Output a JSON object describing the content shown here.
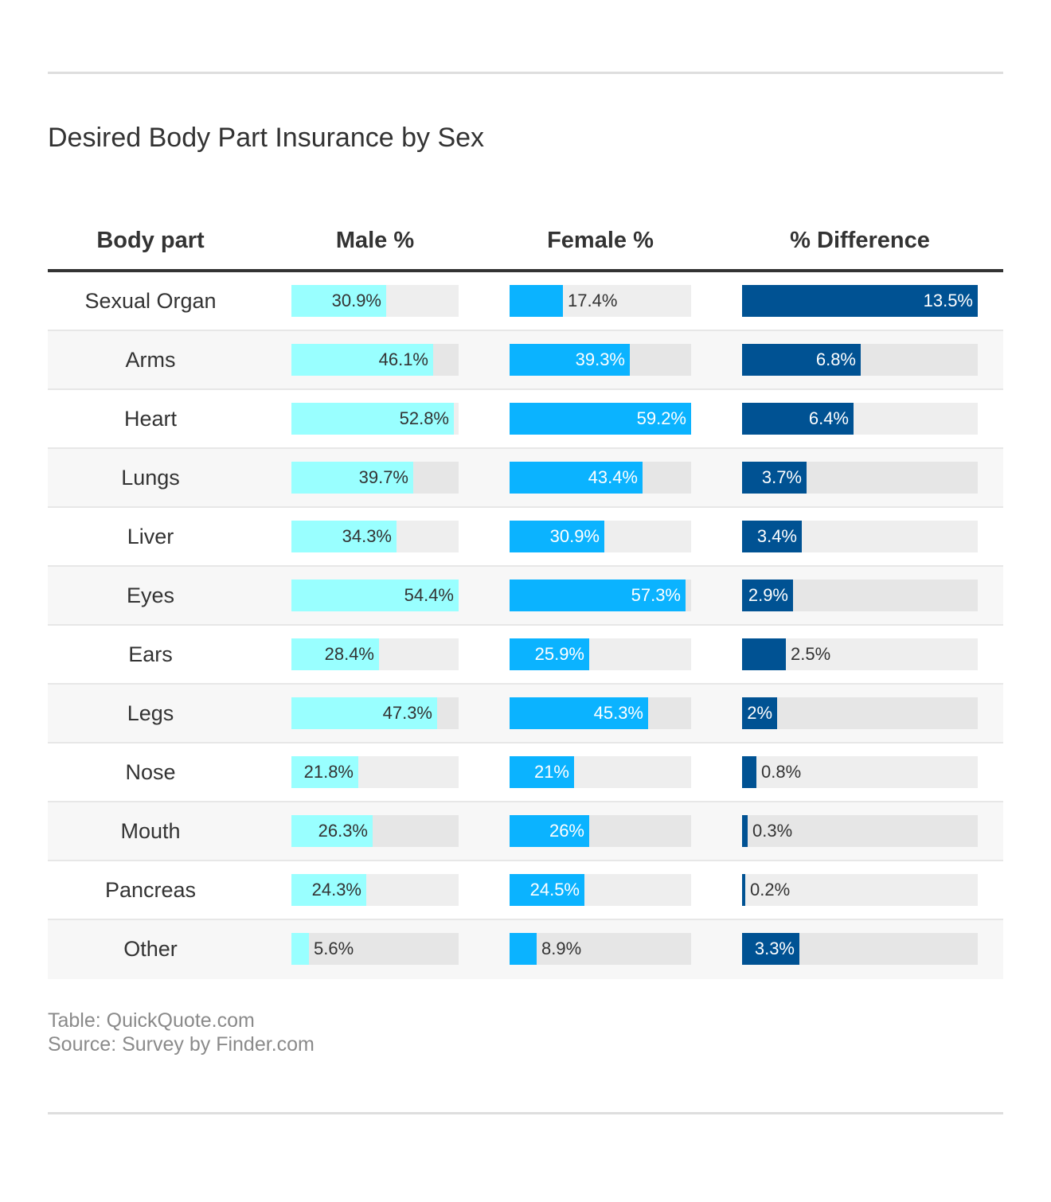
{
  "colors": {
    "male": "#99ffff",
    "female": "#0bb3ff",
    "difference": "#005293"
  },
  "chart_data": {
    "type": "table",
    "title": "Desired Body Part Insurance by Sex",
    "columns": [
      "Body part",
      "Male %",
      "Female %",
      "% Difference"
    ],
    "column_max": {
      "male": 54.4,
      "female": 59.2,
      "difference": 13.5
    },
    "rows": [
      {
        "part": "Sexual Organ",
        "male": 30.9,
        "female": 17.4,
        "difference": 13.5,
        "male_label": "30.9%",
        "female_label": "17.4%",
        "difference_label": "13.5%"
      },
      {
        "part": "Arms",
        "male": 46.1,
        "female": 39.3,
        "difference": 6.8,
        "male_label": "46.1%",
        "female_label": "39.3%",
        "difference_label": "6.8%"
      },
      {
        "part": "Heart",
        "male": 52.8,
        "female": 59.2,
        "difference": 6.4,
        "male_label": "52.8%",
        "female_label": "59.2%",
        "difference_label": "6.4%"
      },
      {
        "part": "Lungs",
        "male": 39.7,
        "female": 43.4,
        "difference": 3.7,
        "male_label": "39.7%",
        "female_label": "43.4%",
        "difference_label": "3.7%"
      },
      {
        "part": "Liver",
        "male": 34.3,
        "female": 30.9,
        "difference": 3.4,
        "male_label": "34.3%",
        "female_label": "30.9%",
        "difference_label": "3.4%"
      },
      {
        "part": "Eyes",
        "male": 54.4,
        "female": 57.3,
        "difference": 2.9,
        "male_label": "54.4%",
        "female_label": "57.3%",
        "difference_label": "2.9%"
      },
      {
        "part": "Ears",
        "male": 28.4,
        "female": 25.9,
        "difference": 2.5,
        "male_label": "28.4%",
        "female_label": "25.9%",
        "difference_label": "2.5%"
      },
      {
        "part": "Legs",
        "male": 47.3,
        "female": 45.3,
        "difference": 2,
        "male_label": "47.3%",
        "female_label": "45.3%",
        "difference_label": "2%"
      },
      {
        "part": "Nose",
        "male": 21.8,
        "female": 21,
        "difference": 0.8,
        "male_label": "21.8%",
        "female_label": "21%",
        "difference_label": "0.8%"
      },
      {
        "part": "Mouth",
        "male": 26.3,
        "female": 26,
        "difference": 0.3,
        "male_label": "26.3%",
        "female_label": "26%",
        "difference_label": "0.3%"
      },
      {
        "part": "Pancreas",
        "male": 24.3,
        "female": 24.5,
        "difference": 0.2,
        "male_label": "24.3%",
        "female_label": "24.5%",
        "difference_label": "0.2%"
      },
      {
        "part": "Other",
        "male": 5.6,
        "female": 8.9,
        "difference": 3.3,
        "male_label": "5.6%",
        "female_label": "8.9%",
        "difference_label": "3.3%"
      }
    ]
  },
  "footer": {
    "table_credit": "Table: QuickQuote.com",
    "source": "Source: Survey by Finder.com"
  }
}
